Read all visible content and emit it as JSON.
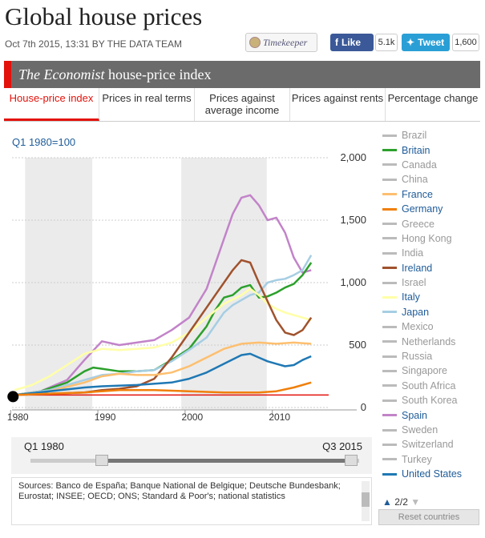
{
  "page": {
    "title": "Global house prices",
    "byline": "Oct 7th 2015, 13:31 BY THE DATA TEAM",
    "timekeeper": "Timekeeper",
    "facebook_label": "Like",
    "facebook_count": "5.1k",
    "twitter_label": "Tweet",
    "twitter_count": "1,600"
  },
  "header": {
    "brand": "The Economist",
    "title_rest": " house-price index"
  },
  "tabs": [
    {
      "label": "House-price index",
      "active": true
    },
    {
      "label": "Prices in real terms",
      "active": false
    },
    {
      "label": "Prices against average income",
      "active": false
    },
    {
      "label": "Prices against rents",
      "active": false
    },
    {
      "label": "Percentage change",
      "active": false
    }
  ],
  "range": {
    "start_label": "Q1 1980",
    "end_label": "Q3 2015"
  },
  "sources": "Sources: Banco de España; Banque National de Belgique; Deutsche Bundesbank; Eurostat; INSEE; OECD; ONS; Standard & Poor's; national statistics",
  "legend": {
    "pager": "2/2",
    "reset_label": "Reset countries"
  },
  "chart_data": {
    "type": "line",
    "unit_label": "Q1 1980=100",
    "ylim": [
      0,
      2000
    ],
    "xlim": [
      1979.7,
      2016
    ],
    "y_ticks": [
      "2,000",
      "1,500",
      "1,000",
      "500",
      "0"
    ],
    "y_tick_values": [
      2000,
      1500,
      1000,
      500,
      0
    ],
    "x_ticks": [
      "1980",
      "1990",
      "2000",
      "2010"
    ],
    "x_tick_values": [
      1980,
      1990,
      2000,
      2010
    ],
    "recessions": [
      [
        1981.2,
        1988.9
      ],
      [
        1999.1,
        2008.9
      ]
    ],
    "baseline": 100,
    "baseline_color": "#e3120b",
    "legend": [
      {
        "name": "Brazil",
        "color": "#bbbbbb",
        "on": false
      },
      {
        "name": "Britain",
        "color": "#2ca02c",
        "on": true
      },
      {
        "name": "Canada",
        "color": "#bbbbbb",
        "on": false
      },
      {
        "name": "China",
        "color": "#bbbbbb",
        "on": false
      },
      {
        "name": "France",
        "color": "#fdbf6f",
        "on": true
      },
      {
        "name": "Germany",
        "color": "#f07f09",
        "on": true
      },
      {
        "name": "Greece",
        "color": "#bbbbbb",
        "on": false
      },
      {
        "name": "Hong Kong",
        "color": "#bbbbbb",
        "on": false
      },
      {
        "name": "India",
        "color": "#bbbbbb",
        "on": false
      },
      {
        "name": "Ireland",
        "color": "#a0522d",
        "on": true
      },
      {
        "name": "Israel",
        "color": "#bbbbbb",
        "on": false
      },
      {
        "name": "Italy",
        "color": "#ffffa8",
        "on": true
      },
      {
        "name": "Japan",
        "color": "#a6cee3",
        "on": true
      },
      {
        "name": "Mexico",
        "color": "#bbbbbb",
        "on": false
      },
      {
        "name": "Netherlands",
        "color": "#bbbbbb",
        "on": false
      },
      {
        "name": "Russia",
        "color": "#bbbbbb",
        "on": false
      },
      {
        "name": "Singapore",
        "color": "#bbbbbb",
        "on": false
      },
      {
        "name": "South Africa",
        "color": "#bbbbbb",
        "on": false
      },
      {
        "name": "South Korea",
        "color": "#bbbbbb",
        "on": false
      },
      {
        "name": "Spain",
        "color": "#c283c9",
        "on": true
      },
      {
        "name": "Sweden",
        "color": "#bbbbbb",
        "on": false
      },
      {
        "name": "Switzerland",
        "color": "#bbbbbb",
        "on": false
      },
      {
        "name": "Turkey",
        "color": "#bbbbbb",
        "on": false
      },
      {
        "name": "United States",
        "color": "#1f78b4",
        "on": true
      }
    ],
    "series": [
      {
        "name": "Spain",
        "color": "#c283c9",
        "x": [
          1980,
          1983,
          1986,
          1988,
          1990,
          1992,
          1994,
          1996,
          1998,
          2000,
          2002,
          2004,
          2005,
          2006,
          2007,
          2008,
          2009,
          2010,
          2011,
          2012,
          2013,
          2014
        ],
        "y": [
          100,
          130,
          220,
          380,
          530,
          500,
          520,
          540,
          620,
          720,
          950,
          1350,
          1550,
          1680,
          1700,
          1620,
          1500,
          1520,
          1400,
          1200,
          1080,
          1100
        ]
      },
      {
        "name": "Britain",
        "color": "#2ca02c",
        "x": [
          1980,
          1983,
          1986,
          1988,
          1989,
          1990,
          1992,
          1994,
          1996,
          1998,
          2000,
          2002,
          2003,
          2004,
          2005,
          2006,
          2007,
          2008,
          2009,
          2010,
          2011,
          2012,
          2013,
          2014
        ],
        "y": [
          100,
          130,
          200,
          290,
          320,
          310,
          290,
          290,
          300,
          380,
          470,
          650,
          780,
          880,
          900,
          960,
          980,
          880,
          890,
          920,
          960,
          990,
          1060,
          1160
        ]
      },
      {
        "name": "Japan",
        "color": "#a6cee3",
        "x": [
          1980,
          1984,
          1988,
          1990,
          1992,
          1994,
          1996,
          1998,
          2000,
          2002,
          2004,
          2005,
          2006,
          2007,
          2008,
          2009,
          2010,
          2011,
          2012,
          2013,
          2014
        ],
        "y": [
          100,
          140,
          220,
          260,
          270,
          290,
          300,
          370,
          460,
          560,
          760,
          820,
          860,
          900,
          920,
          1000,
          1020,
          1030,
          1060,
          1100,
          1220
        ]
      },
      {
        "name": "Italy",
        "color": "#ffffa8",
        "x": [
          1980,
          1982,
          1984,
          1986,
          1988,
          1990,
          1992,
          1994,
          1996,
          1998,
          2000,
          2002,
          2004,
          2006,
          2007,
          2008,
          2009,
          2010,
          2011,
          2012,
          2013,
          2014
        ],
        "y": [
          140,
          180,
          250,
          340,
          430,
          470,
          460,
          470,
          480,
          520,
          600,
          720,
          830,
          900,
          950,
          900,
          830,
          790,
          760,
          740,
          720,
          700
        ]
      },
      {
        "name": "Ireland",
        "color": "#a0522d",
        "x": [
          1980,
          1984,
          1988,
          1990,
          1992,
          1994,
          1996,
          1998,
          2000,
          2002,
          2003,
          2004,
          2005,
          2006,
          2007,
          2008,
          2009,
          2010,
          2011,
          2012,
          2013,
          2014
        ],
        "y": [
          100,
          110,
          120,
          140,
          150,
          170,
          230,
          400,
          600,
          800,
          900,
          1000,
          1100,
          1180,
          1160,
          1000,
          850,
          700,
          600,
          580,
          620,
          720
        ]
      },
      {
        "name": "France",
        "color": "#fdbf6f",
        "x": [
          1980,
          1984,
          1988,
          1990,
          1992,
          1994,
          1996,
          1998,
          2000,
          2002,
          2004,
          2006,
          2008,
          2010,
          2012,
          2014
        ],
        "y": [
          100,
          130,
          200,
          250,
          270,
          260,
          260,
          280,
          330,
          400,
          470,
          510,
          520,
          510,
          520,
          510
        ]
      },
      {
        "name": "United States",
        "color": "#1f78b4",
        "x": [
          1980,
          1984,
          1988,
          1990,
          1994,
          1998,
          2000,
          2002,
          2004,
          2006,
          2007,
          2008,
          2009,
          2010,
          2011,
          2012,
          2013,
          2014
        ],
        "y": [
          100,
          130,
          160,
          170,
          180,
          200,
          230,
          280,
          350,
          420,
          430,
          400,
          370,
          350,
          330,
          340,
          380,
          410
        ]
      },
      {
        "name": "Germany",
        "color": "#f07f09",
        "x": [
          1980,
          1984,
          1988,
          1992,
          1996,
          2000,
          2004,
          2008,
          2010,
          2012,
          2014
        ],
        "y": [
          100,
          110,
          120,
          140,
          140,
          130,
          120,
          120,
          130,
          160,
          200
        ]
      }
    ]
  }
}
